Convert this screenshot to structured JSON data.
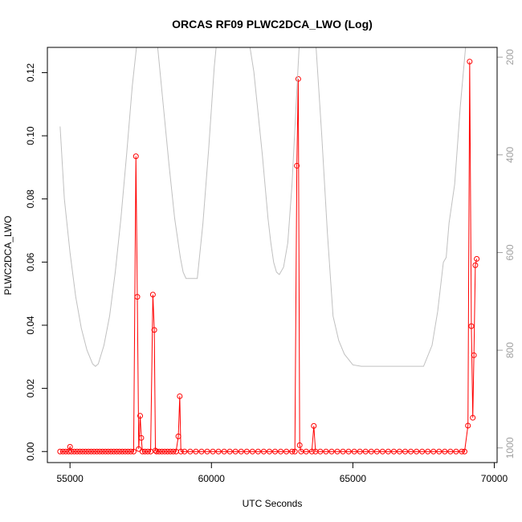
{
  "chart_data": {
    "type": "line",
    "title": "ORCAS RF09 PLWC2DCA_LWO (Log)",
    "xlabel": "UTC Seconds",
    "ylabel": "PLWC2DCA_LWO",
    "xlim": [
      54200,
      70100
    ],
    "ylim": [
      -0.0035,
      0.128
    ],
    "xticks": [
      55000,
      60000,
      65000,
      70000
    ],
    "yticks": [
      0.0,
      0.02,
      0.04,
      0.06,
      0.08,
      0.1,
      0.12
    ],
    "y2lim": [
      1030,
      180
    ],
    "y2ticks": [
      200,
      400,
      600,
      800,
      1000
    ],
    "grid": false,
    "series": [
      {
        "color": "#ff0000",
        "marker": "open-circle",
        "axis": "left",
        "points": [
          [
            54650,
            0.0
          ],
          [
            54750,
            0.0
          ],
          [
            54850,
            0.0
          ],
          [
            54950,
            0.0
          ],
          [
            55000,
            0.0015
          ],
          [
            55050,
            0.0
          ],
          [
            55150,
            0.0
          ],
          [
            55250,
            0.0
          ],
          [
            55350,
            0.0
          ],
          [
            55450,
            0.0
          ],
          [
            55550,
            0.0
          ],
          [
            55650,
            0.0
          ],
          [
            55750,
            0.0
          ],
          [
            55850,
            0.0
          ],
          [
            55950,
            0.0
          ],
          [
            56050,
            0.0
          ],
          [
            56150,
            0.0
          ],
          [
            56250,
            0.0
          ],
          [
            56350,
            0.0
          ],
          [
            56450,
            0.0
          ],
          [
            56550,
            0.0
          ],
          [
            56650,
            0.0
          ],
          [
            56750,
            0.0
          ],
          [
            56850,
            0.0
          ],
          [
            56950,
            0.0
          ],
          [
            57050,
            0.0
          ],
          [
            57150,
            0.0
          ],
          [
            57250,
            0.0
          ],
          [
            57330,
            0.0935
          ],
          [
            57380,
            0.049
          ],
          [
            57430,
            0.0008
          ],
          [
            57480,
            0.0113
          ],
          [
            57520,
            0.0043
          ],
          [
            57560,
            0.0
          ],
          [
            57650,
            0.0
          ],
          [
            57750,
            0.0
          ],
          [
            57850,
            0.0
          ],
          [
            57930,
            0.0497
          ],
          [
            57980,
            0.0385
          ],
          [
            58020,
            0.0003
          ],
          [
            58060,
            0.0
          ],
          [
            58150,
            0.0
          ],
          [
            58250,
            0.0
          ],
          [
            58350,
            0.0
          ],
          [
            58450,
            0.0
          ],
          [
            58550,
            0.0
          ],
          [
            58650,
            0.0
          ],
          [
            58750,
            0.0
          ],
          [
            58830,
            0.0048
          ],
          [
            58880,
            0.0175
          ],
          [
            58920,
            0.0
          ],
          [
            59050,
            0.0
          ],
          [
            59250,
            0.0
          ],
          [
            59450,
            0.0
          ],
          [
            59650,
            0.0
          ],
          [
            59850,
            0.0
          ],
          [
            60050,
            0.0
          ],
          [
            60250,
            0.0
          ],
          [
            60450,
            0.0
          ],
          [
            60650,
            0.0
          ],
          [
            60850,
            0.0
          ],
          [
            61050,
            0.0
          ],
          [
            61250,
            0.0
          ],
          [
            61450,
            0.0
          ],
          [
            61650,
            0.0
          ],
          [
            61850,
            0.0
          ],
          [
            62050,
            0.0
          ],
          [
            62250,
            0.0
          ],
          [
            62450,
            0.0
          ],
          [
            62650,
            0.0
          ],
          [
            62850,
            0.0
          ],
          [
            62950,
            0.0
          ],
          [
            63020,
            0.0905
          ],
          [
            63070,
            0.118
          ],
          [
            63120,
            0.002
          ],
          [
            63170,
            0.0
          ],
          [
            63350,
            0.0
          ],
          [
            63550,
            0.0
          ],
          [
            63620,
            0.0081
          ],
          [
            63680,
            0.0
          ],
          [
            63850,
            0.0
          ],
          [
            64050,
            0.0
          ],
          [
            64250,
            0.0
          ],
          [
            64450,
            0.0
          ],
          [
            64650,
            0.0
          ],
          [
            64850,
            0.0
          ],
          [
            65050,
            0.0
          ],
          [
            65250,
            0.0
          ],
          [
            65450,
            0.0
          ],
          [
            65650,
            0.0
          ],
          [
            65850,
            0.0
          ],
          [
            66050,
            0.0
          ],
          [
            66250,
            0.0
          ],
          [
            66450,
            0.0
          ],
          [
            66650,
            0.0
          ],
          [
            66850,
            0.0
          ],
          [
            67050,
            0.0
          ],
          [
            67250,
            0.0
          ],
          [
            67450,
            0.0
          ],
          [
            67650,
            0.0
          ],
          [
            67850,
            0.0
          ],
          [
            68050,
            0.0
          ],
          [
            68250,
            0.0
          ],
          [
            68450,
            0.0
          ],
          [
            68650,
            0.0
          ],
          [
            68850,
            0.0
          ],
          [
            68950,
            0.0
          ],
          [
            69070,
            0.0082
          ],
          [
            69130,
            0.1235
          ],
          [
            69190,
            0.0397
          ],
          [
            69240,
            0.0107
          ],
          [
            69280,
            0.0305
          ],
          [
            69330,
            0.059
          ],
          [
            69380,
            0.061
          ]
        ]
      },
      {
        "color": "#c0c0c0",
        "axis": "right",
        "points": [
          [
            54650,
            342
          ],
          [
            54800,
            490
          ],
          [
            55000,
            600
          ],
          [
            55200,
            690
          ],
          [
            55400,
            755
          ],
          [
            55600,
            800
          ],
          [
            55800,
            828
          ],
          [
            55900,
            833
          ],
          [
            56000,
            828
          ],
          [
            56200,
            790
          ],
          [
            56400,
            730
          ],
          [
            56600,
            640
          ],
          [
            56800,
            530
          ],
          [
            57000,
            400
          ],
          [
            57200,
            260
          ],
          [
            57350,
            180
          ],
          [
            57600,
            120
          ],
          [
            57900,
            120
          ],
          [
            58100,
            180
          ],
          [
            58300,
            300
          ],
          [
            58500,
            420
          ],
          [
            58700,
            530
          ],
          [
            58900,
            610
          ],
          [
            59000,
            640
          ],
          [
            59100,
            653
          ],
          [
            59500,
            653
          ],
          [
            59700,
            540
          ],
          [
            59900,
            390
          ],
          [
            60100,
            220
          ],
          [
            60250,
            130
          ],
          [
            60700,
            80
          ],
          [
            61200,
            120
          ],
          [
            61500,
            230
          ],
          [
            61800,
            400
          ],
          [
            62000,
            530
          ],
          [
            62100,
            580
          ],
          [
            62200,
            620
          ],
          [
            62300,
            640
          ],
          [
            62400,
            645
          ],
          [
            62550,
            630
          ],
          [
            62700,
            580
          ],
          [
            62850,
            460
          ],
          [
            63000,
            290
          ],
          [
            63100,
            180
          ],
          [
            63400,
            130
          ],
          [
            63700,
            180
          ],
          [
            63900,
            360
          ],
          [
            64100,
            560
          ],
          [
            64300,
            730
          ],
          [
            64500,
            780
          ],
          [
            64700,
            808
          ],
          [
            65000,
            830
          ],
          [
            65300,
            833
          ],
          [
            67500,
            833
          ],
          [
            67800,
            790
          ],
          [
            68000,
            720
          ],
          [
            68200,
            620
          ],
          [
            68300,
            610
          ],
          [
            68400,
            540
          ],
          [
            68600,
            460
          ],
          [
            68800,
            300
          ],
          [
            69000,
            170
          ],
          [
            69200,
            100
          ],
          [
            69400,
            100
          ]
        ]
      }
    ]
  }
}
